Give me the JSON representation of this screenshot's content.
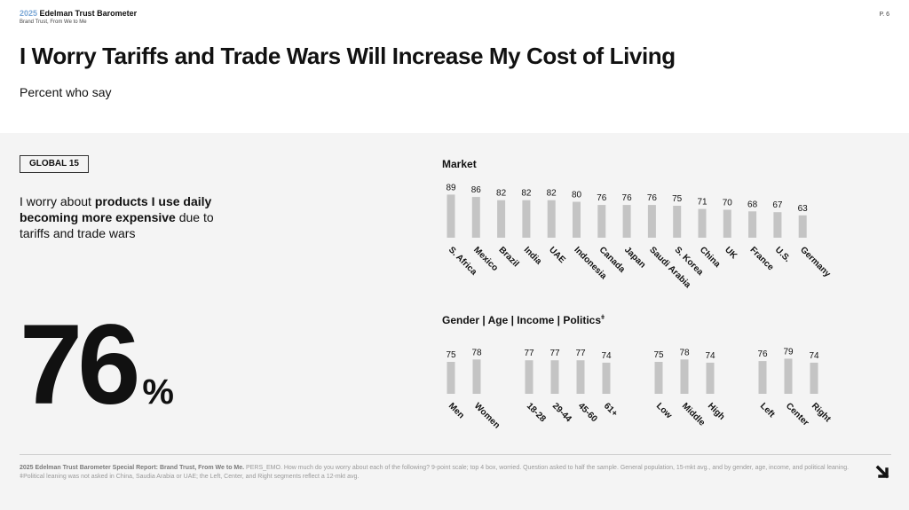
{
  "header": {
    "brand_year": "2025",
    "brand_name": "Edelman Trust Barometer",
    "sub": "Brand Trust, From We to Me",
    "page": "P. 6"
  },
  "title": "I Worry Tariffs and Trade Wars Will Increase My Cost of Living",
  "subtitle": "Percent who say",
  "badge": "GLOBAL 15",
  "statement": {
    "pre": "I worry about ",
    "bold": "products I use daily becoming more expensive",
    "post": " due to tariffs and trade wars"
  },
  "global_value": "76",
  "global_unit": "%",
  "market_heading": "Market",
  "demo_heading": "Gender | Age | Income | Politics",
  "demo_heading_mark": "ǂ",
  "colors": {
    "bar": "#c4c4c4",
    "panel": "#f4f4f4",
    "brand_year": "#7aa7d6"
  },
  "chart_data": [
    {
      "type": "bar",
      "title": "Market",
      "categories": [
        "S. Africa",
        "Mexico",
        "Brazil",
        "India",
        "UAE",
        "Indonesia",
        "Canada",
        "Japan",
        "Saudi Arabia",
        "S. Korea",
        "China",
        "UK",
        "France",
        "U.S.",
        "Germany"
      ],
      "values": [
        89,
        86,
        82,
        82,
        82,
        80,
        76,
        76,
        76,
        75,
        71,
        70,
        68,
        67,
        63
      ]
    },
    {
      "type": "bar",
      "title": "Gender | Age | Income | Politics",
      "groups": [
        {
          "categories": [
            "Men",
            "Women"
          ],
          "values": [
            75,
            78
          ]
        },
        {
          "categories": [
            "18-28",
            "29-44",
            "45-60",
            "61+"
          ],
          "values": [
            77,
            77,
            77,
            74
          ]
        },
        {
          "categories": [
            "Low",
            "Middle",
            "High"
          ],
          "values": [
            75,
            78,
            74
          ]
        },
        {
          "categories": [
            "Left",
            "Center",
            "Right"
          ],
          "values": [
            76,
            79,
            74
          ]
        }
      ]
    }
  ],
  "footnote": {
    "bold": "2025 Edelman Trust Barometer Special Report: Brand Trust, From We to Me.",
    "text": " PERS_EMO. How much do you worry about each of the following? 9-point scale; top 4 box, worried. Question asked to half the sample. General population, 15-mkt avg., and by gender, age, income, and political leaning. ǂPolitical leaning was not asked in China, Saudia Arabia or UAE; the Left, Center, and Right segments reflect a 12-mkt avg."
  },
  "icons": {
    "next": "arrow-down-right-icon"
  }
}
